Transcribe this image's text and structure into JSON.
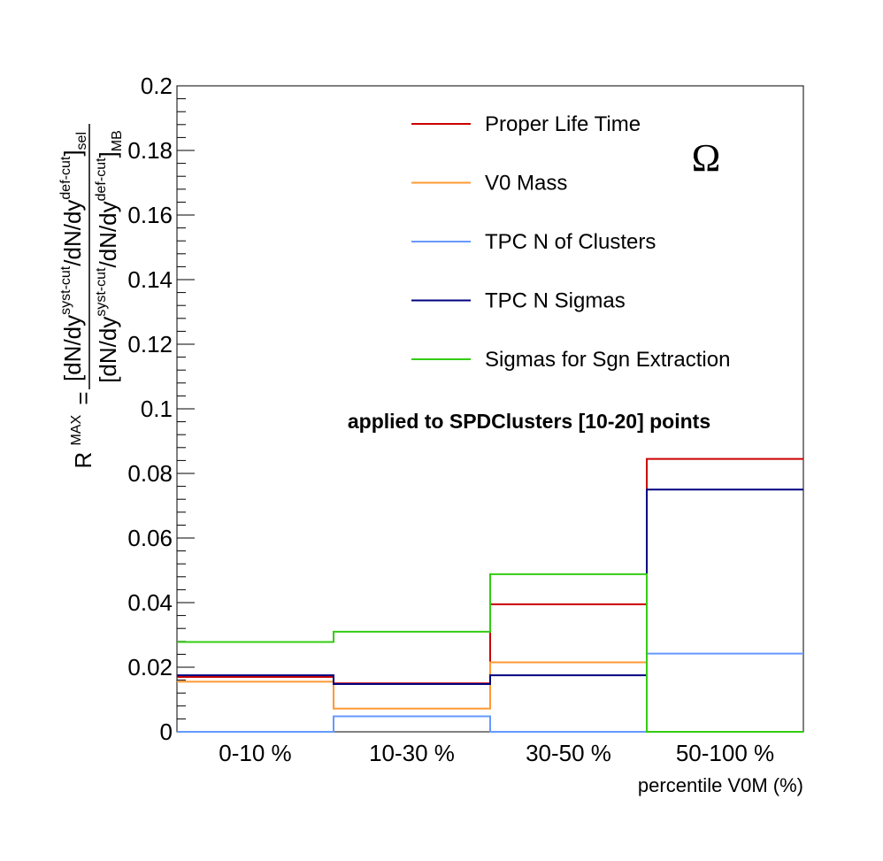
{
  "chart_data": {
    "type": "line",
    "step": true,
    "categories": [
      "0-10 %",
      "10-30 %",
      "30-50 %",
      "50-100 %"
    ],
    "xlabel": "percentile V0M (%)",
    "ylim": [
      0,
      0.2
    ],
    "yticks": [
      "0",
      "0.02",
      "0.04",
      "0.06",
      "0.08",
      "0.1",
      "0.12",
      "0.14",
      "0.16",
      "0.18",
      "0.2"
    ],
    "ylabel": {
      "lhs": "R",
      "lhs_sup": "MAX",
      "eq": "=",
      "num": "[dN/dy",
      "num_sup1": "syst-cut",
      "num_mid": "/dN/dy",
      "num_sup2": "def-cut",
      "num_close": "]",
      "num_sub": "sel",
      "den": "[dN/dy",
      "den_sup1": "syst-cut",
      "den_mid": "/dN/dy",
      "den_sup2": "def-cut",
      "den_close": "]",
      "den_sub": "MB"
    },
    "annotation": "applied to SPDClusters [10-20] points",
    "particle": "Ω",
    "legend_position": "top-right",
    "series": [
      {
        "name": "Proper Life Time",
        "color": "#cc0000",
        "values": [
          0.017,
          0.015,
          0.0395,
          0.0845
        ]
      },
      {
        "name": "V0 Mass",
        "color": "#ff9933",
        "values": [
          0.0155,
          0.0072,
          0.0215,
          0.0
        ]
      },
      {
        "name": "TPC N of Clusters",
        "color": "#6699ff",
        "values": [
          0.0,
          0.0048,
          0.0,
          0.0242
        ]
      },
      {
        "name": "TPC N Sigmas",
        "color": "#000080",
        "values": [
          0.0175,
          0.0148,
          0.0175,
          0.075
        ]
      },
      {
        "name": "Sigmas for Sgn Extraction",
        "color": "#33cc11",
        "values": [
          0.0278,
          0.031,
          0.0488,
          0.0
        ]
      }
    ]
  }
}
